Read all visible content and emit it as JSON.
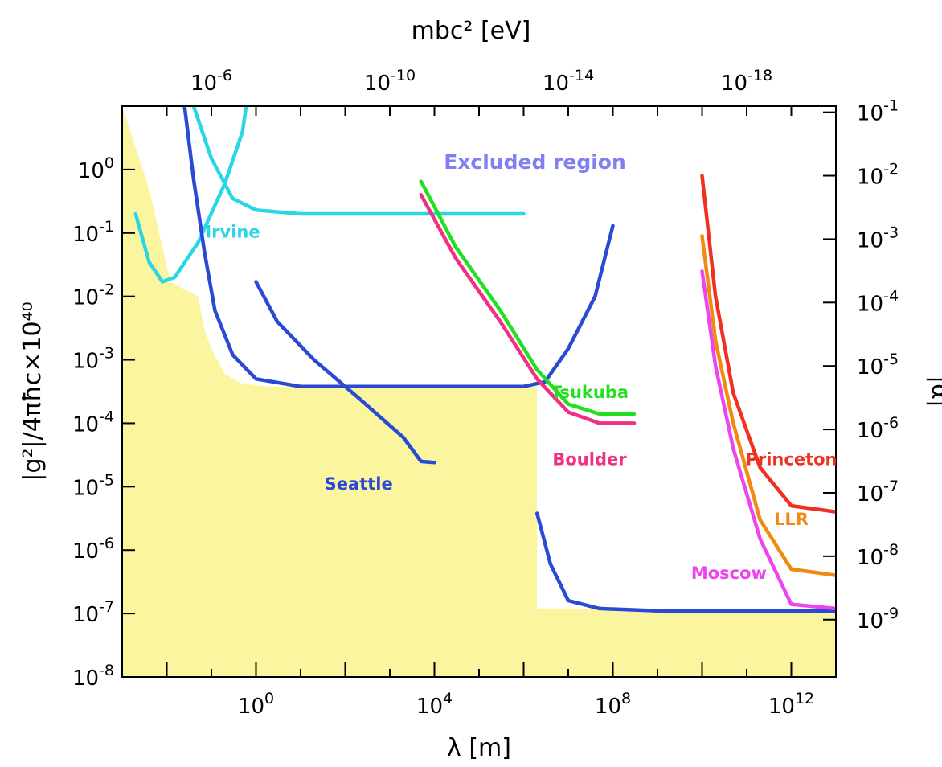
{
  "chart_data": {
    "type": "line",
    "x_axis": {
      "label": "λ [m]",
      "scale": "log",
      "range": [
        0.001,
        10000000000000.0
      ],
      "tick_labels": [
        {
          "value": 1,
          "base": "10",
          "exp": "0"
        },
        {
          "value": 10000,
          "base": "10",
          "exp": "4"
        },
        {
          "value": 100000000,
          "base": "10",
          "exp": "8"
        },
        {
          "value": 1000000000000,
          "base": "10",
          "exp": "12"
        }
      ]
    },
    "y_axis": {
      "label": "|g²|/4πħc×10⁴⁰",
      "scale": "log",
      "range": [
        1e-08,
        10
      ],
      "tick_labels": [
        {
          "value": 1e-08,
          "base": "10",
          "exp": "-8"
        },
        {
          "value": 1e-07,
          "base": "10",
          "exp": "-7"
        },
        {
          "value": 1e-06,
          "base": "10",
          "exp": "-6"
        },
        {
          "value": 1e-05,
          "base": "10",
          "exp": "-5"
        },
        {
          "value": 0.0001,
          "base": "10",
          "exp": "-4"
        },
        {
          "value": 0.001,
          "base": "10",
          "exp": "-3"
        },
        {
          "value": 0.01,
          "base": "10",
          "exp": "-2"
        },
        {
          "value": 0.1,
          "base": "10",
          "exp": "-1"
        },
        {
          "value": 1,
          "base": "10",
          "exp": "0"
        }
      ]
    },
    "top_axis": {
      "label": "mbc² [eV]",
      "tick_labels": [
        {
          "value": 0.1,
          "base": "10",
          "exp": "-6"
        },
        {
          "value": 1000,
          "base": "10",
          "exp": "-10"
        },
        {
          "value": 10000000,
          "base": "10",
          "exp": "-14"
        },
        {
          "value": 100000000000,
          "base": "10",
          "exp": "-18"
        }
      ]
    },
    "right_axis": {
      "label": "|α|",
      "tick_labels": [
        {
          "value": 8,
          "base": "10",
          "exp": "-1"
        },
        {
          "value": 0.8,
          "base": "10",
          "exp": "-2"
        },
        {
          "value": 0.08,
          "base": "10",
          "exp": "-3"
        },
        {
          "value": 0.008,
          "base": "10",
          "exp": "-4"
        },
        {
          "value": 0.0008,
          "base": "10",
          "exp": "-5"
        },
        {
          "value": 8e-05,
          "base": "10",
          "exp": "-6"
        },
        {
          "value": 8e-06,
          "base": "10",
          "exp": "-7"
        },
        {
          "value": 8e-07,
          "base": "10",
          "exp": "-8"
        },
        {
          "value": 8e-08,
          "base": "10",
          "exp": "-9"
        }
      ]
    },
    "region_label": {
      "text": "Excluded region",
      "x": 10000,
      "y": 1.3,
      "color": "#8080f0"
    },
    "allowed_region": {
      "color": "#fbf5a0",
      "boundary": [
        [
          0.001,
          10
        ],
        [
          0.004,
          0.5
        ],
        [
          0.012,
          0.017
        ],
        [
          0.05,
          0.01
        ],
        [
          0.07,
          0.003
        ],
        [
          0.1,
          0.0015
        ],
        [
          0.2,
          0.0006
        ],
        [
          0.5,
          0.00042
        ],
        [
          2,
          0.00038
        ],
        [
          10000,
          0.00038
        ],
        [
          10000,
          0.00038
        ],
        [
          10000,
          0.00038
        ],
        [
          10000,
          0.00038
        ],
        [
          10000,
          0.00038
        ],
        [
          2000000,
          0.00038
        ],
        [
          2000000,
          2.5e-07
        ],
        [
          2000000,
          1.2e-07
        ],
        [
          1000000000,
          1.2e-07
        ],
        [
          20000000000,
          1.2e-07
        ],
        [
          10000000000000,
          1.2e-07
        ]
      ]
    },
    "series": [
      {
        "name": "Irvine",
        "color": "#2ad6e6",
        "label_pos": {
          "x": 0.3,
          "y": 0.085
        },
        "segments": [
          [
            [
              0.002,
              0.2
            ],
            [
              0.004,
              0.035
            ],
            [
              0.008,
              0.017
            ],
            [
              0.015,
              0.02
            ],
            [
              0.05,
              0.07
            ],
            [
              0.2,
              0.6
            ],
            [
              0.5,
              4
            ],
            [
              0.6,
              10
            ]
          ],
          [
            [
              0.04,
              10
            ],
            [
              0.1,
              1.5
            ],
            [
              0.3,
              0.35
            ],
            [
              1,
              0.23
            ],
            [
              10,
              0.2
            ],
            [
              1000,
              0.2
            ],
            [
              100000,
              0.2
            ],
            [
              1000000,
              0.2
            ]
          ]
        ]
      },
      {
        "name": "Seattle",
        "color": "#2a4ad6",
        "label_pos": {
          "x": 200,
          "y": 9e-06
        },
        "segments": [
          [
            [
              0.025,
              10
            ],
            [
              0.04,
              0.7
            ],
            [
              0.07,
              0.05
            ],
            [
              0.12,
              0.006
            ],
            [
              0.3,
              0.0012
            ],
            [
              1,
              0.0005
            ],
            [
              10,
              0.00038
            ],
            [
              1000,
              0.00038
            ],
            [
              100000,
              0.00038
            ],
            [
              1000000,
              0.00038
            ],
            [
              3000000,
              0.00045
            ],
            [
              10000000,
              0.0015
            ],
            [
              40000000,
              0.01
            ],
            [
              100000000,
              0.13
            ]
          ],
          [
            [
              1,
              0.017
            ],
            [
              3,
              0.004
            ],
            [
              20,
              0.001
            ],
            [
              200,
              0.00025
            ],
            [
              2000,
              6e-05
            ],
            [
              5000,
              2.5e-05
            ],
            [
              10000,
              2.4e-05
            ]
          ],
          [
            [
              2000000,
              3.8e-06
            ],
            [
              4000000,
              6e-07
            ],
            [
              10000000,
              1.6e-07
            ],
            [
              50000000,
              1.2e-07
            ],
            [
              1000000000,
              1.1e-07
            ],
            [
              10000000000000,
              1.1e-07
            ]
          ]
        ]
      },
      {
        "name": "Tsukuba",
        "color": "#20e020",
        "label_pos": {
          "x": 30000000,
          "y": 0.00025
        },
        "segments": [
          [
            [
              5000,
              0.65
            ],
            [
              30000,
              0.06
            ],
            [
              300000,
              0.006
            ],
            [
              2000000,
              0.0007
            ],
            [
              10000000,
              0.0002
            ],
            [
              50000000,
              0.00014
            ],
            [
              300000000,
              0.00014
            ]
          ]
        ]
      },
      {
        "name": "Boulder",
        "color": "#f03080",
        "label_pos": {
          "x": 30000000,
          "y": 2.2e-05
        },
        "segments": [
          [
            [
              5000,
              0.4
            ],
            [
              30000,
              0.04
            ],
            [
              300000,
              0.004
            ],
            [
              2000000,
              0.0005
            ],
            [
              10000000,
              0.00015
            ],
            [
              50000000,
              0.0001
            ],
            [
              300000000,
              0.0001
            ]
          ]
        ]
      },
      {
        "name": "Princeton",
        "color": "#f03020",
        "label_pos": {
          "x": 1000000000000,
          "y": 2.2e-05
        },
        "segments": [
          [
            [
              10000000000,
              0.8
            ],
            [
              20000000000,
              0.01
            ],
            [
              50000000000,
              0.0003
            ],
            [
              200000000000,
              2e-05
            ],
            [
              1000000000000,
              5e-06
            ],
            [
              10000000000000,
              4e-06
            ]
          ]
        ]
      },
      {
        "name": "LLR",
        "color": "#f08a10",
        "label_pos": {
          "x": 1000000000000,
          "y": 2.5e-06
        },
        "segments": [
          [
            [
              10000000000,
              0.09
            ],
            [
              20000000000,
              0.002
            ],
            [
              50000000000,
              0.0001
            ],
            [
              200000000000,
              3e-06
            ],
            [
              1000000000000,
              5e-07
            ],
            [
              10000000000000,
              4e-07
            ]
          ]
        ]
      },
      {
        "name": "Moscow",
        "color": "#ee44ee",
        "label_pos": {
          "x": 40000000000,
          "y": 3.5e-07
        },
        "segments": [
          [
            [
              10000000000,
              0.025
            ],
            [
              20000000000,
              0.0008
            ],
            [
              50000000000,
              4e-05
            ],
            [
              200000000000,
              1.5e-06
            ],
            [
              1000000000000,
              1.4e-07
            ],
            [
              10000000000000,
              1.2e-07
            ]
          ]
        ]
      }
    ]
  }
}
